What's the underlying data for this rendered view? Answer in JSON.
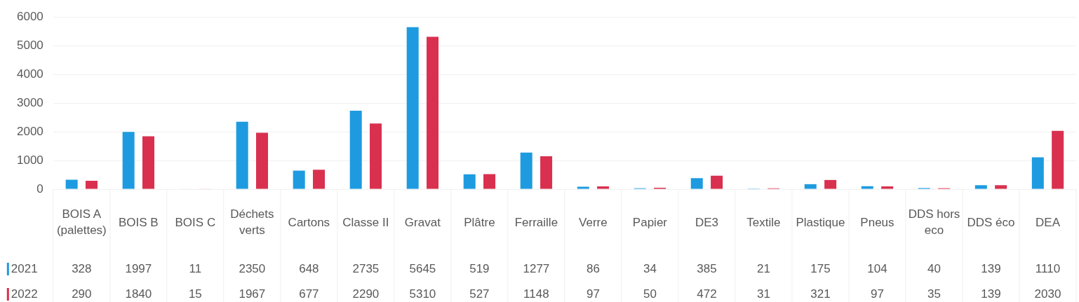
{
  "chart_data": {
    "type": "bar",
    "categories": [
      "BOIS A (palettes)",
      "BOIS B",
      "BOIS C",
      "Déchets verts",
      "Cartons",
      "Classe II",
      "Gravat",
      "Plâtre",
      "Ferraille",
      "Verre",
      "Papier",
      "DE3",
      "Textile",
      "Plastique",
      "Pneus",
      "DDS hors eco",
      "DDS éco",
      "DEA"
    ],
    "series": [
      {
        "name": "2021",
        "color": "#1e9be0",
        "values": [
          328,
          1997,
          11,
          2350,
          648,
          2735,
          5645,
          519,
          1277,
          86,
          34,
          385,
          21,
          175,
          104,
          40,
          139,
          1110
        ]
      },
      {
        "name": "2022",
        "color": "#d9304f",
        "values": [
          290,
          1840,
          15,
          1967,
          677,
          2290,
          5310,
          527,
          1148,
          97,
          50,
          472,
          31,
          321,
          97,
          35,
          139,
          2030
        ]
      }
    ],
    "ylim": [
      0,
      6000
    ],
    "yticks": [
      0,
      1000,
      2000,
      3000,
      4000,
      5000,
      6000
    ],
    "grid": "y",
    "legend": "bottom left",
    "data_labels": true
  }
}
